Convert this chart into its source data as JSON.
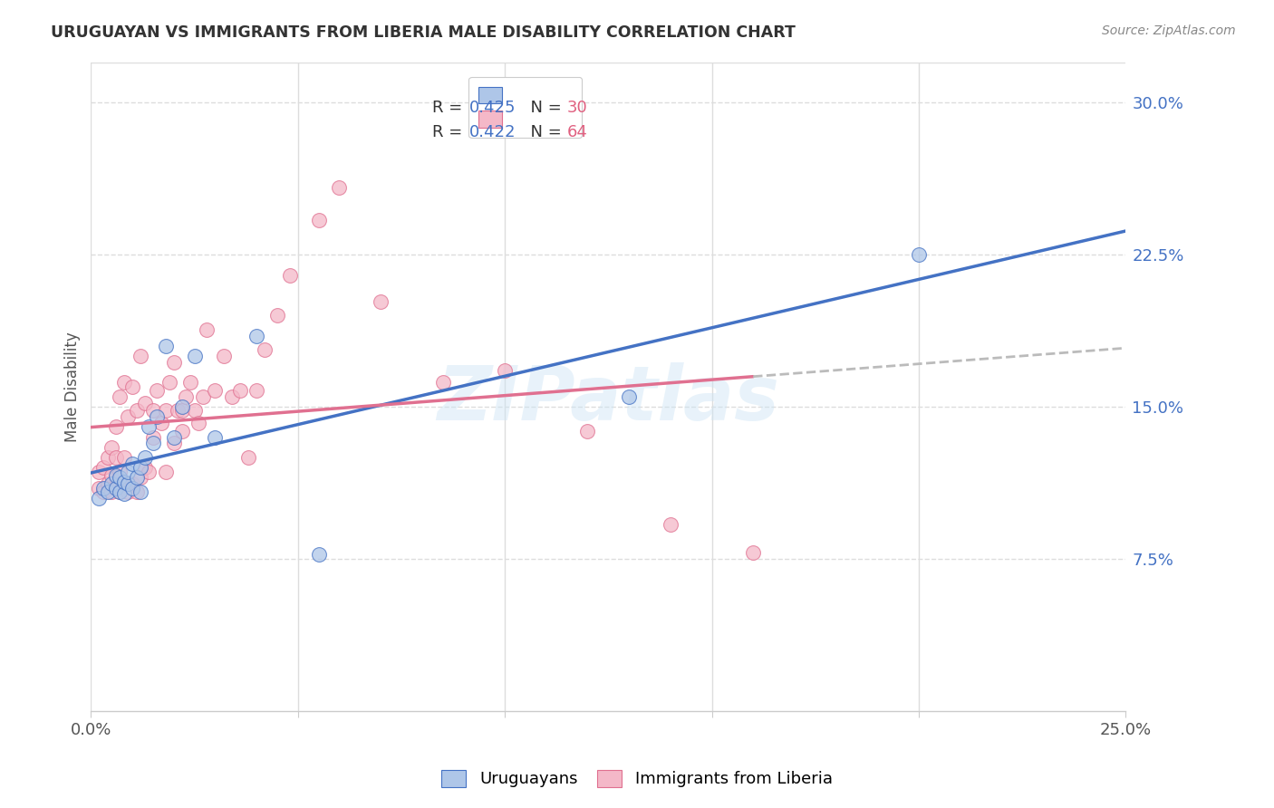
{
  "title": "URUGUAYAN VS IMMIGRANTS FROM LIBERIA MALE DISABILITY CORRELATION CHART",
  "source": "Source: ZipAtlas.com",
  "ylabel": "Male Disability",
  "xlim": [
    0.0,
    0.25
  ],
  "ylim": [
    0.0,
    0.32
  ],
  "watermark": "ZIPatlas",
  "uruguayan_R": 0.425,
  "uruguayan_N": 30,
  "liberia_R": 0.422,
  "liberia_N": 64,
  "uruguayan_color": "#aec6e8",
  "liberia_color": "#f4b8c8",
  "line_uruguayan_color": "#4472c4",
  "line_liberia_color": "#e07090",
  "dash_color": "#bbbbbb",
  "uruguayan_x": [
    0.002,
    0.003,
    0.004,
    0.005,
    0.006,
    0.006,
    0.007,
    0.007,
    0.008,
    0.008,
    0.009,
    0.009,
    0.01,
    0.01,
    0.011,
    0.012,
    0.012,
    0.013,
    0.014,
    0.015,
    0.016,
    0.018,
    0.02,
    0.022,
    0.025,
    0.03,
    0.04,
    0.055,
    0.13,
    0.2
  ],
  "uruguayan_y": [
    0.105,
    0.11,
    0.108,
    0.112,
    0.11,
    0.116,
    0.108,
    0.115,
    0.107,
    0.113,
    0.112,
    0.118,
    0.11,
    0.122,
    0.115,
    0.108,
    0.12,
    0.125,
    0.14,
    0.132,
    0.145,
    0.18,
    0.135,
    0.15,
    0.175,
    0.135,
    0.185,
    0.077,
    0.155,
    0.225
  ],
  "liberia_x": [
    0.002,
    0.002,
    0.003,
    0.003,
    0.004,
    0.004,
    0.005,
    0.005,
    0.005,
    0.006,
    0.006,
    0.006,
    0.007,
    0.007,
    0.007,
    0.008,
    0.008,
    0.008,
    0.009,
    0.009,
    0.01,
    0.01,
    0.011,
    0.011,
    0.012,
    0.012,
    0.013,
    0.013,
    0.014,
    0.015,
    0.015,
    0.016,
    0.017,
    0.018,
    0.018,
    0.019,
    0.02,
    0.02,
    0.021,
    0.022,
    0.022,
    0.023,
    0.024,
    0.025,
    0.026,
    0.027,
    0.028,
    0.03,
    0.032,
    0.034,
    0.036,
    0.038,
    0.04,
    0.042,
    0.045,
    0.048,
    0.055,
    0.06,
    0.07,
    0.085,
    0.1,
    0.12,
    0.14,
    0.16
  ],
  "liberia_y": [
    0.11,
    0.118,
    0.108,
    0.12,
    0.112,
    0.125,
    0.108,
    0.116,
    0.13,
    0.115,
    0.125,
    0.14,
    0.108,
    0.118,
    0.155,
    0.112,
    0.125,
    0.162,
    0.108,
    0.145,
    0.112,
    0.16,
    0.108,
    0.148,
    0.115,
    0.175,
    0.12,
    0.152,
    0.118,
    0.135,
    0.148,
    0.158,
    0.142,
    0.118,
    0.148,
    0.162,
    0.172,
    0.132,
    0.148,
    0.138,
    0.148,
    0.155,
    0.162,
    0.148,
    0.142,
    0.155,
    0.188,
    0.158,
    0.175,
    0.155,
    0.158,
    0.125,
    0.158,
    0.178,
    0.195,
    0.215,
    0.242,
    0.258,
    0.202,
    0.162,
    0.168,
    0.138,
    0.092,
    0.078
  ]
}
